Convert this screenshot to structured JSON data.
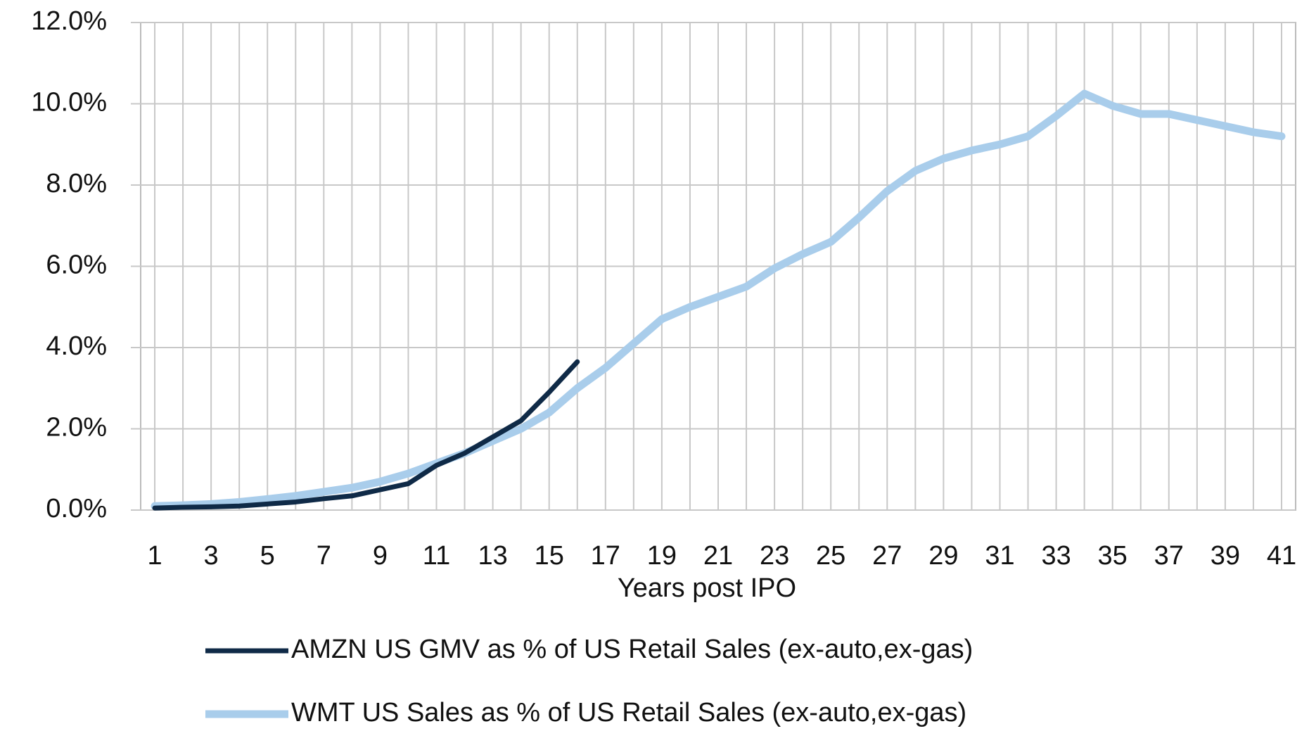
{
  "chart_data": {
    "type": "line",
    "x_label": "Years post IPO",
    "x": [
      1,
      2,
      3,
      4,
      5,
      6,
      7,
      8,
      9,
      10,
      11,
      12,
      13,
      14,
      15,
      16,
      17,
      18,
      19,
      20,
      21,
      22,
      23,
      24,
      25,
      26,
      27,
      28,
      29,
      30,
      31,
      32,
      33,
      34,
      35,
      36,
      37,
      38,
      39,
      40,
      41
    ],
    "xlim": [
      0.5,
      41.5
    ],
    "xticks": [
      1,
      3,
      5,
      7,
      9,
      11,
      13,
      15,
      17,
      19,
      21,
      23,
      25,
      27,
      29,
      31,
      33,
      35,
      37,
      39,
      41
    ],
    "ylim": [
      0,
      12
    ],
    "yticks": [
      {
        "value": 0,
        "label": "0.0%"
      },
      {
        "value": 2,
        "label": "2.0%"
      },
      {
        "value": 4,
        "label": "4.0%"
      },
      {
        "value": 6,
        "label": "6.0%"
      },
      {
        "value": 8,
        "label": "8.0%"
      },
      {
        "value": 10,
        "label": "10.0%"
      },
      {
        "value": 12,
        "label": "12.0%"
      }
    ],
    "grid": true,
    "legend": "bottom",
    "series": [
      {
        "name": "AMZN US GMV as % of US Retail Sales (ex-auto,ex-gas)",
        "color": "#0f2a47",
        "values": [
          0.05,
          0.07,
          0.08,
          0.1,
          0.15,
          0.2,
          0.28,
          0.35,
          0.5,
          0.65,
          1.1,
          1.4,
          1.8,
          2.2,
          2.9,
          3.65,
          null,
          null,
          null,
          null,
          null,
          null,
          null,
          null,
          null,
          null,
          null,
          null,
          null,
          null,
          null,
          null,
          null,
          null,
          null,
          null,
          null,
          null,
          null,
          null,
          null
        ]
      },
      {
        "name": "WMT US Sales as % of US Retail Sales (ex-auto,ex-gas)",
        "color": "#a9cdeb",
        "values": [
          0.1,
          0.12,
          0.15,
          0.2,
          0.27,
          0.35,
          0.45,
          0.55,
          0.7,
          0.9,
          1.15,
          1.4,
          1.7,
          2.0,
          2.4,
          3.0,
          3.5,
          4.1,
          4.7,
          5.0,
          5.25,
          5.5,
          5.95,
          6.3,
          6.6,
          7.2,
          7.85,
          8.35,
          8.65,
          8.85,
          9.0,
          9.2,
          9.7,
          10.25,
          9.95,
          9.75,
          9.75,
          9.6,
          9.45,
          9.3,
          9.2
        ]
      }
    ]
  }
}
